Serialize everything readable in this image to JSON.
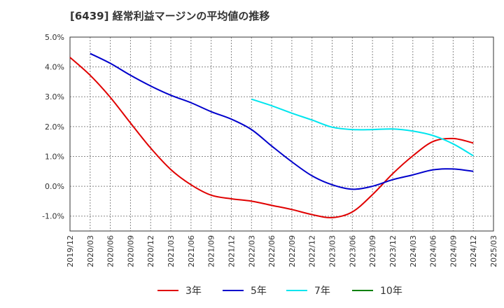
{
  "chart_data": {
    "type": "line",
    "title": "[6439]  経常利益マージンの平均値の推移",
    "xlabel": "",
    "ylabel": "",
    "x_ticks": [
      "2019/12",
      "2020/03",
      "2020/06",
      "2020/09",
      "2020/12",
      "2021/03",
      "2021/06",
      "2021/09",
      "2021/12",
      "2022/03",
      "2022/06",
      "2022/09",
      "2022/12",
      "2023/03",
      "2023/06",
      "2023/09",
      "2023/12",
      "2024/03",
      "2024/06",
      "2024/09",
      "2024/12",
      "2025/03"
    ],
    "y_ticks": [
      "5.0%",
      "4.0%",
      "3.0%",
      "2.0%",
      "1.0%",
      "0.0%",
      "-1.0%"
    ],
    "ylim": [
      -1.5,
      5.0
    ],
    "grid": true,
    "legend_position": "bottom",
    "series": [
      {
        "name": "3年",
        "color": "#e00000",
        "x": [
          "2019/12",
          "2020/03",
          "2020/06",
          "2020/09",
          "2020/12",
          "2021/03",
          "2021/06",
          "2021/09",
          "2021/12",
          "2022/03",
          "2022/06",
          "2022/09",
          "2022/12",
          "2023/03",
          "2023/06",
          "2023/09",
          "2023/12",
          "2024/03",
          "2024/06",
          "2024/09",
          "2024/12"
        ],
        "values": [
          4.32,
          3.72,
          2.98,
          2.12,
          1.28,
          0.56,
          0.05,
          -0.3,
          -0.42,
          -0.5,
          -0.64,
          -0.78,
          -0.95,
          -1.05,
          -0.86,
          -0.28,
          0.42,
          1.02,
          1.5,
          1.6,
          1.45
        ]
      },
      {
        "name": "5年",
        "color": "#0000cc",
        "x": [
          "2020/03",
          "2020/06",
          "2020/09",
          "2020/12",
          "2021/03",
          "2021/06",
          "2021/09",
          "2021/12",
          "2022/03",
          "2022/06",
          "2022/09",
          "2022/12",
          "2023/03",
          "2023/06",
          "2023/09",
          "2023/12",
          "2024/03",
          "2024/06",
          "2024/09",
          "2024/12"
        ],
        "values": [
          4.45,
          4.12,
          3.72,
          3.36,
          3.05,
          2.8,
          2.5,
          2.25,
          1.9,
          1.35,
          0.82,
          0.35,
          0.05,
          -0.1,
          0.0,
          0.22,
          0.38,
          0.55,
          0.58,
          0.5
        ]
      },
      {
        "name": "7年",
        "color": "#00e5ee",
        "x": [
          "2022/03",
          "2022/06",
          "2022/09",
          "2022/12",
          "2023/03",
          "2023/06",
          "2023/09",
          "2023/12",
          "2024/03",
          "2024/06",
          "2024/09",
          "2024/12"
        ],
        "values": [
          2.92,
          2.7,
          2.45,
          2.22,
          1.98,
          1.9,
          1.9,
          1.92,
          1.85,
          1.7,
          1.42,
          1.02
        ]
      },
      {
        "name": "10年",
        "color": "#008000",
        "x": [],
        "values": []
      }
    ]
  }
}
